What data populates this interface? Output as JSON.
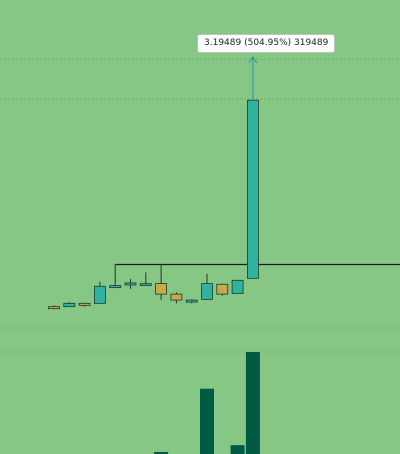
{
  "chart_data": {
    "type": "candlestick",
    "annotation": {
      "text": "3.19489 (504.95%) 319489",
      "value": 3.19489,
      "percent": 504.95,
      "amount": 319489
    },
    "reference_level": 0.7,
    "y_range": [
      -0.75,
      4.2
    ],
    "candles": [
      {
        "open": 0.05,
        "high": 0.08,
        "low": 0.02,
        "close": 0.06,
        "color": "#c9a84a"
      },
      {
        "open": 0.06,
        "high": 0.13,
        "low": 0.06,
        "close": 0.11,
        "color": "#2fb3a0"
      },
      {
        "open": 0.09,
        "high": 0.12,
        "low": 0.06,
        "close": 0.11,
        "color": "#c9a84a"
      },
      {
        "open": 0.11,
        "high": 0.44,
        "low": 0.11,
        "close": 0.37,
        "color": "#2fb3a0"
      },
      {
        "open": 0.36,
        "high": 0.7,
        "low": 0.34,
        "close": 0.38,
        "color": "#2fb3a0"
      },
      {
        "open": 0.39,
        "high": 0.48,
        "low": 0.33,
        "close": 0.42,
        "color": "#2fb3a0"
      },
      {
        "open": 0.41,
        "high": 0.58,
        "low": 0.38,
        "close": 0.41,
        "color": "#2fb3a0"
      },
      {
        "open": 0.41,
        "high": 0.7,
        "low": 0.16,
        "close": 0.25,
        "color": "#c9a84a"
      },
      {
        "open": 0.25,
        "high": 0.28,
        "low": 0.11,
        "close": 0.16,
        "color": "#c9a84a"
      },
      {
        "open": 0.15,
        "high": 0.17,
        "low": 0.11,
        "close": 0.16,
        "color": "#2fb3a0"
      },
      {
        "open": 0.17,
        "high": 0.56,
        "low": 0.17,
        "close": 0.41,
        "color": "#2fb3a0"
      },
      {
        "open": 0.25,
        "high": 0.41,
        "low": 0.23,
        "close": 0.4,
        "color": "#c9a84a"
      },
      {
        "open": 0.26,
        "high": 0.47,
        "low": 0.26,
        "close": 0.46,
        "color": "#2fb3a0"
      },
      {
        "open": 0.49,
        "high": 3.19489,
        "low": 0.49,
        "close": 3.19489,
        "color": "#2fb3a0"
      }
    ],
    "volume": [
      0,
      0,
      0,
      0,
      0,
      0,
      0,
      3,
      0,
      0,
      96,
      0,
      13,
      150
    ],
    "volume_color": "#005a44",
    "colors": {
      "background": "#86c786",
      "up": "#2fb3a0",
      "down": "#c9a84a",
      "arrow": "#2f8fa0",
      "reference_line": "#1b1b1b"
    }
  }
}
